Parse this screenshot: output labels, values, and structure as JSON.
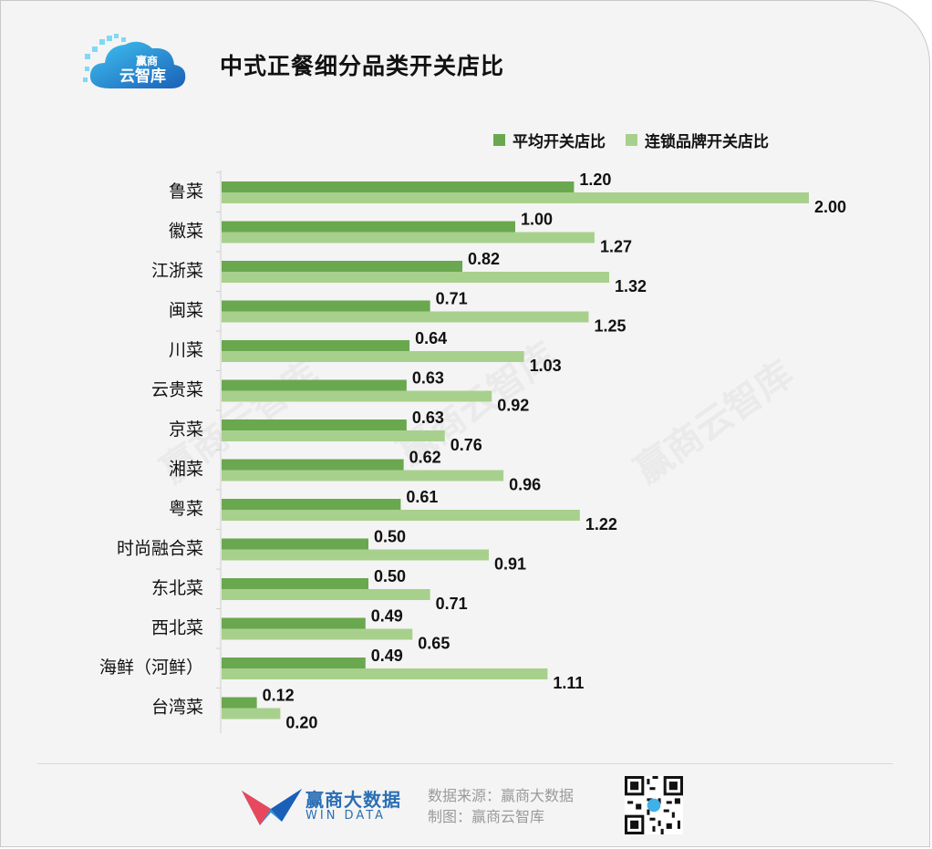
{
  "header": {
    "logo_text_top": "赢商",
    "logo_text_bottom": "云智库",
    "title": "中式正餐细分品类开关店比"
  },
  "colors": {
    "series_avg": "#6aa84f",
    "series_chain": "#a8d08d",
    "background": "#f4f4f4",
    "brand_blue": "#2a6fb5"
  },
  "chart_data": {
    "type": "bar",
    "orientation": "horizontal",
    "categories": [
      "鲁菜",
      "徽菜",
      "江浙菜",
      "闽菜",
      "川菜",
      "云贵菜",
      "京菜",
      "湘菜",
      "粤菜",
      "时尚融合菜",
      "东北菜",
      "西北菜",
      "海鲜（河鲜）",
      "台湾菜"
    ],
    "series": [
      {
        "name": "平均开关店比",
        "values": [
          1.2,
          1.0,
          0.82,
          0.71,
          0.64,
          0.63,
          0.63,
          0.62,
          0.61,
          0.5,
          0.5,
          0.49,
          0.49,
          0.12
        ]
      },
      {
        "name": "连锁品牌开关店比",
        "values": [
          2.0,
          1.27,
          1.32,
          1.25,
          1.03,
          0.92,
          0.76,
          0.96,
          1.22,
          0.91,
          0.71,
          0.65,
          1.11,
          0.2
        ]
      }
    ],
    "value_labels": [
      [
        "1.20",
        "1.00",
        "0.82",
        "0.71",
        "0.64",
        "0.63",
        "0.63",
        "0.62",
        "0.61",
        "0.50",
        "0.50",
        "0.49",
        "0.49",
        "0.12"
      ],
      [
        "2.00",
        "1.27",
        "1.32",
        "1.25",
        "1.03",
        "0.92",
        "0.76",
        "0.96",
        "1.22",
        "0.91",
        "0.71",
        "0.65",
        "1.11",
        "0.20"
      ]
    ],
    "xlim": [
      0,
      2.0
    ],
    "legend": "top-right",
    "grid": false
  },
  "watermark": "赢商云智库",
  "footer": {
    "brand_name": "赢商大数据",
    "brand_sub": "WIN DATA",
    "source_line": "数据来源：赢商大数据",
    "made_by_line": "制图：赢商云智库"
  }
}
